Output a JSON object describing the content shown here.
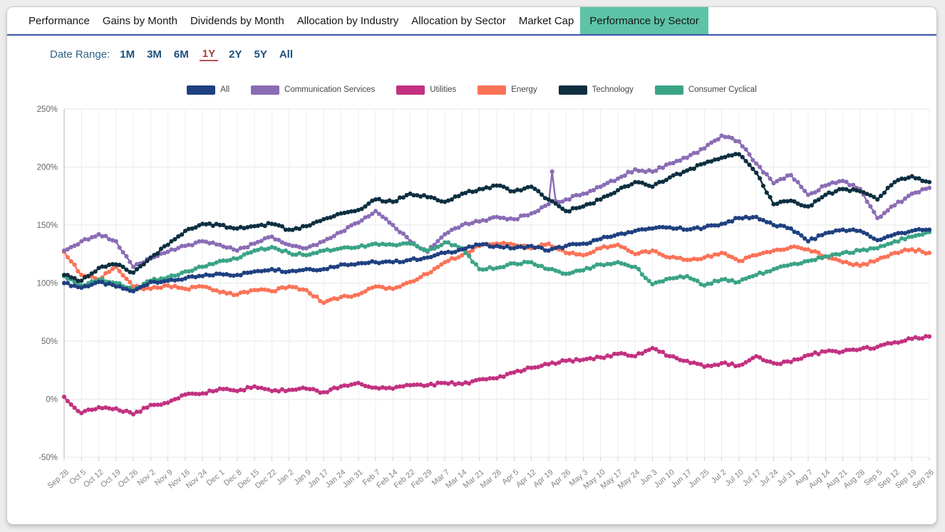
{
  "theme": {
    "active_tab_bg": "#5ec3a7",
    "tab_underline": "#3a55a3",
    "range_selected": "#a93f35"
  },
  "tabs": {
    "items": [
      {
        "label": "Performance"
      },
      {
        "label": "Gains by Month"
      },
      {
        "label": "Dividends by Month"
      },
      {
        "label": "Allocation by Industry"
      },
      {
        "label": "Allocation by Sector"
      },
      {
        "label": "Market Cap"
      },
      {
        "label": "Performance by Sector"
      }
    ],
    "active": "Performance by Sector"
  },
  "date_range": {
    "label": "Date Range:",
    "options": [
      "1M",
      "3M",
      "6M",
      "1Y",
      "2Y",
      "5Y",
      "All"
    ],
    "selected": "1Y"
  },
  "chart_data": {
    "type": "line",
    "title": "",
    "xlabel": "",
    "ylabel": "",
    "ylim": [
      -50,
      250
    ],
    "grid": true,
    "legend_position": "top",
    "ytick_values": [
      250,
      200,
      150,
      100,
      50,
      0,
      -50
    ],
    "ytick_labels": [
      "250%",
      "200%",
      "150%",
      "100%",
      "50%",
      "0%",
      "-50%"
    ],
    "x_labels": [
      "Sep 28",
      "Oct 5",
      "Oct 12",
      "Oct 19",
      "Oct 26",
      "Nov 2",
      "Nov 9",
      "Nov 16",
      "Nov 24",
      "Dec 1",
      "Dec 8",
      "Dec 15",
      "Dec 22",
      "Jan 2",
      "Jan 9",
      "Jan 17",
      "Jan 24",
      "Jan 31",
      "Feb 7",
      "Feb 14",
      "Feb 22",
      "Feb 29",
      "Mar 7",
      "Mar 14",
      "Mar 21",
      "Mar 28",
      "Apr 5",
      "Apr 12",
      "Apr 19",
      "Apr 26",
      "May 3",
      "May 10",
      "May 17",
      "May 24",
      "Jun 3",
      "Jun 10",
      "Jun 17",
      "Jun 25",
      "Jul 2",
      "Jul 10",
      "Jul 17",
      "Jul 24",
      "Jul 31",
      "Aug 7",
      "Aug 14",
      "Aug 21",
      "Aug 28",
      "Sep 5",
      "Sep 12",
      "Sep 19",
      "Sep 26"
    ],
    "unit": "%",
    "series": [
      {
        "name": "All",
        "color": "#1f4080",
        "values": [
          100,
          96,
          101,
          97,
          93,
          101,
          102,
          104,
          106,
          108,
          107,
          110,
          112,
          110,
          112,
          112,
          116,
          117,
          118,
          118,
          120,
          122,
          126,
          129,
          133,
          132,
          130,
          132,
          128,
          132,
          134,
          138,
          142,
          145,
          147,
          148,
          146,
          148,
          151,
          156,
          157,
          150,
          147,
          136,
          143,
          146,
          145,
          137,
          142,
          145,
          146
        ]
      },
      {
        "name": "Communication Services",
        "color": "#8a6cb5",
        "values": [
          128,
          136,
          142,
          136,
          114,
          121,
          127,
          132,
          136,
          133,
          128,
          134,
          140,
          133,
          130,
          136,
          144,
          152,
          162,
          150,
          136,
          127,
          142,
          150,
          153,
          157,
          155,
          160,
          168,
          172,
          177,
          183,
          190,
          198,
          196,
          203,
          208,
          216,
          227,
          222,
          203,
          186,
          193,
          176,
          184,
          188,
          181,
          156,
          167,
          177,
          182
        ]
      },
      {
        "name": "Utilities",
        "color": "#c23180",
        "values": [
          2,
          -12,
          -7,
          -8,
          -13,
          -5,
          -3,
          4,
          5,
          9,
          7,
          11,
          7,
          8,
          9,
          6,
          11,
          14,
          10,
          9,
          12,
          12,
          14,
          13,
          17,
          18,
          23,
          27,
          30,
          33,
          34,
          36,
          39,
          37,
          44,
          37,
          33,
          28,
          31,
          29,
          37,
          31,
          32,
          38,
          41,
          41,
          43,
          45,
          49,
          52,
          54
        ]
      },
      {
        "name": "Energy",
        "color": "#fb7257",
        "values": [
          127,
          107,
          103,
          114,
          97,
          95,
          98,
          95,
          97,
          92,
          90,
          94,
          93,
          97,
          94,
          83,
          88,
          90,
          97,
          95,
          101,
          108,
          118,
          124,
          132,
          134,
          133,
          130,
          134,
          126,
          124,
          130,
          133,
          125,
          128,
          122,
          120,
          122,
          126,
          119,
          124,
          128,
          131,
          129,
          123,
          118,
          115,
          120,
          126,
          129,
          126
        ]
      },
      {
        "name": "Technology",
        "color": "#0d2f40",
        "values": [
          107,
          102,
          113,
          116,
          109,
          122,
          133,
          145,
          151,
          150,
          147,
          149,
          151,
          146,
          149,
          155,
          160,
          163,
          172,
          170,
          177,
          174,
          170,
          177,
          181,
          184,
          179,
          183,
          172,
          162,
          166,
          172,
          180,
          187,
          183,
          191,
          197,
          203,
          208,
          211,
          195,
          168,
          171,
          166,
          176,
          181,
          179,
          172,
          187,
          192,
          187
        ]
      },
      {
        "name": "Consumer Cyclical",
        "color": "#3aa386",
        "values": [
          106,
          98,
          103,
          100,
          94,
          102,
          105,
          110,
          114,
          119,
          121,
          128,
          131,
          126,
          124,
          128,
          130,
          131,
          134,
          133,
          134,
          128,
          135,
          130,
          112,
          113,
          117,
          118,
          112,
          108,
          111,
          116,
          118,
          114,
          99,
          104,
          106,
          98,
          103,
          101,
          107,
          112,
          116,
          119,
          123,
          126,
          128,
          130,
          136,
          140,
          144
        ]
      }
    ],
    "annotations": {
      "spikes": [
        {
          "series": "Communication Services",
          "from_label": "Apr 19",
          "to_label": "Apr 26",
          "value": 196
        }
      ]
    }
  }
}
